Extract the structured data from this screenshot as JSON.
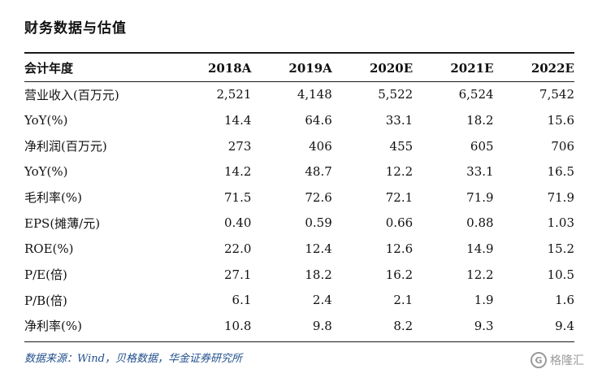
{
  "title": "财务数据与估值",
  "table": {
    "headers": [
      "会计年度",
      "2018A",
      "2019A",
      "2020E",
      "2021E",
      "2022E"
    ],
    "rows": [
      [
        "营业收入(百万元)",
        "2,521",
        "4,148",
        "5,522",
        "6,524",
        "7,542"
      ],
      [
        "YoY(%)",
        "14.4",
        "64.6",
        "33.1",
        "18.2",
        "15.6"
      ],
      [
        "净利润(百万元)",
        "273",
        "406",
        "455",
        "605",
        "706"
      ],
      [
        "YoY(%)",
        "14.2",
        "48.7",
        "12.2",
        "33.1",
        "16.5"
      ],
      [
        "毛利率(%)",
        "71.5",
        "72.6",
        "72.1",
        "71.9",
        "71.9"
      ],
      [
        "EPS(摊薄/元)",
        "0.40",
        "0.59",
        "0.66",
        "0.88",
        "1.03"
      ],
      [
        "ROE(%)",
        "22.0",
        "12.4",
        "12.6",
        "14.9",
        "15.2"
      ],
      [
        "P/E(倍)",
        "27.1",
        "18.2",
        "16.2",
        "12.2",
        "10.5"
      ],
      [
        "P/B(倍)",
        "6.1",
        "2.4",
        "2.1",
        "1.9",
        "1.6"
      ],
      [
        "净利率(%)",
        "10.8",
        "9.8",
        "8.2",
        "9.3",
        "9.4"
      ]
    ]
  },
  "source": "数据来源：Wind，贝格数据，华金证券研究所",
  "watermark": {
    "icon": "G",
    "text": "格隆汇"
  }
}
